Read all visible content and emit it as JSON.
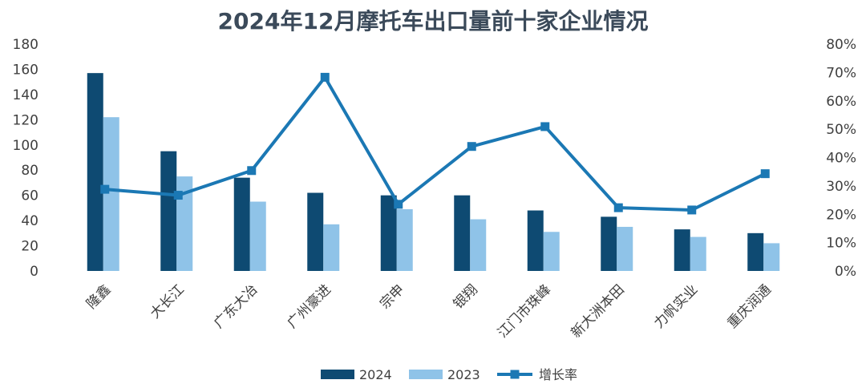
{
  "chart_data": {
    "type": "bar",
    "title": "2024年12月摩托车出口量前十家企业情况",
    "categories": [
      "隆鑫",
      "大长江",
      "广东大冶",
      "广州豪进",
      "宗申",
      "银翔",
      "江门市珠峰",
      "新大洲本田",
      "力帆实业",
      "重庆润通"
    ],
    "series": [
      {
        "name": "2024",
        "type": "bar",
        "axis": "left",
        "color": "#0e4a72",
        "values": [
          157,
          95,
          74,
          62,
          60,
          60,
          48,
          43,
          33,
          30
        ]
      },
      {
        "name": "2023",
        "type": "bar",
        "axis": "left",
        "color": "#8fc3e8",
        "values": [
          122,
          75,
          55,
          37,
          49,
          41,
          31,
          35,
          27,
          22
        ]
      },
      {
        "name": "增长率",
        "type": "line",
        "axis": "right",
        "color": "#1b78b4",
        "values": [
          0.288,
          0.267,
          0.354,
          0.683,
          0.235,
          0.439,
          0.509,
          0.223,
          0.215,
          0.343
        ]
      }
    ],
    "y_left": {
      "min": 0,
      "max": 180,
      "step": 20,
      "ticks": [
        "0",
        "20",
        "40",
        "60",
        "80",
        "100",
        "120",
        "140",
        "160",
        "180"
      ]
    },
    "y_right": {
      "min": 0,
      "max": 0.8,
      "step": 0.1,
      "ticks": [
        "0%",
        "10%",
        "20%",
        "30%",
        "40%",
        "50%",
        "60%",
        "70%",
        "80%"
      ]
    },
    "grid": false,
    "legend_position": "bottom"
  }
}
